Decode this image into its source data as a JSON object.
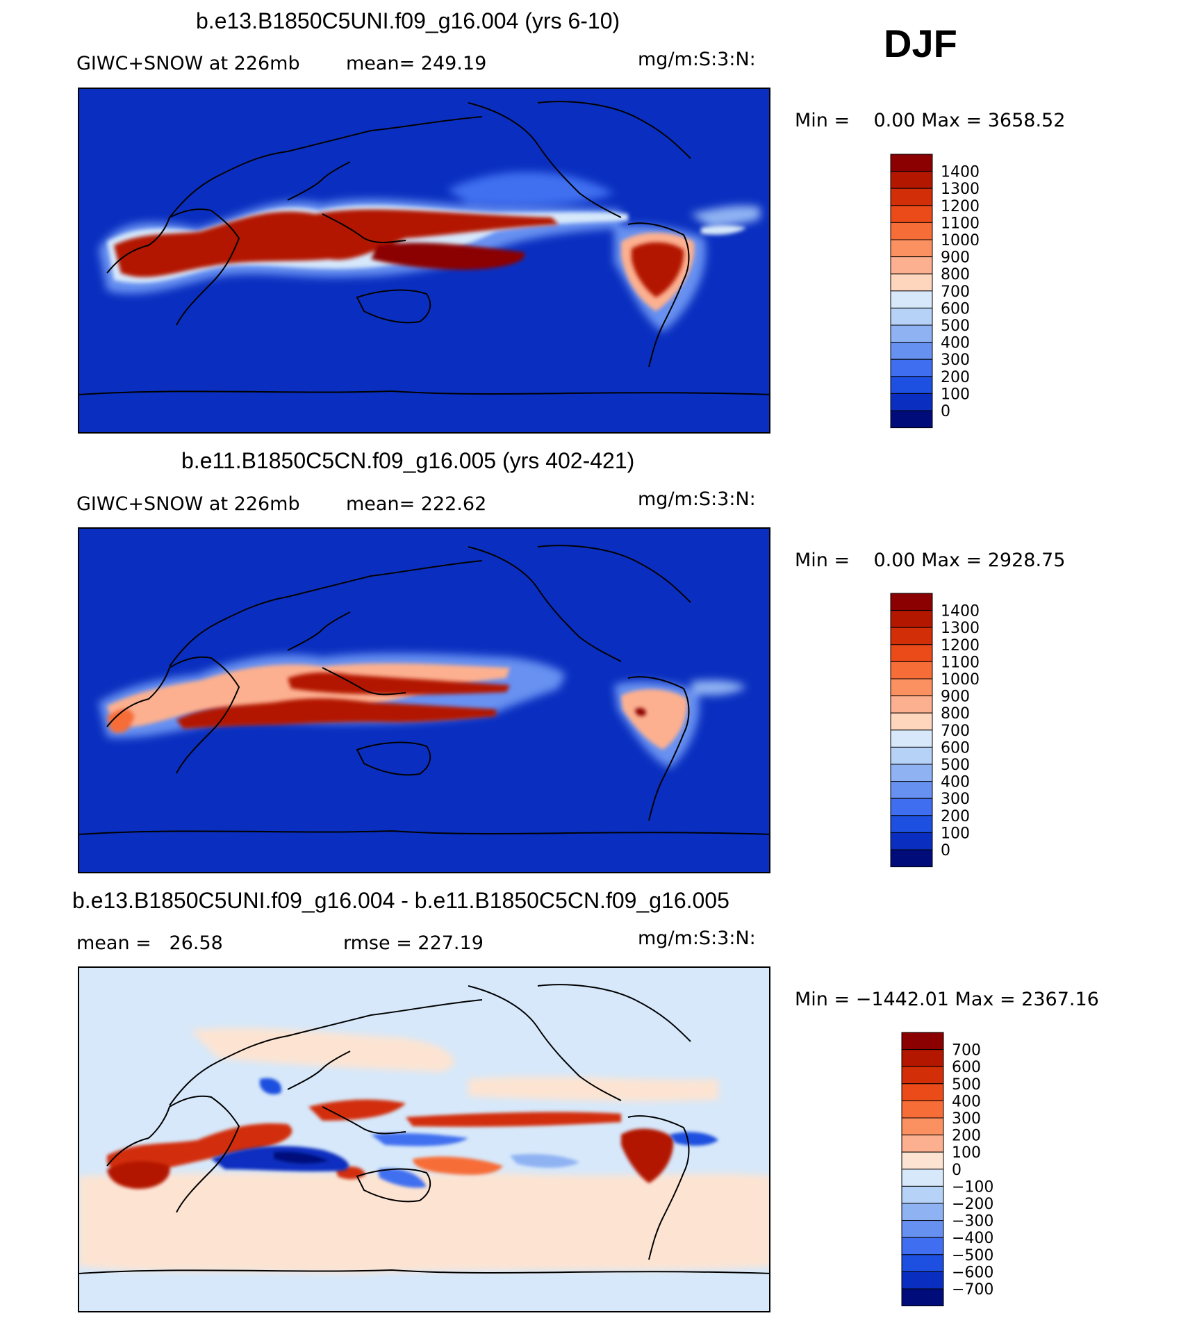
{
  "season": "DJF",
  "panels": [
    {
      "title": "b.e13.B1850C5UNI.f09_g16.004 (yrs 6-10)",
      "left_label": "GIWC+SNOW at 226mb",
      "stat_label": "mean= 249.19",
      "units": "mg/m:S:3:N:",
      "minmax": "Min =    0.00 Max = 3658.52",
      "background": "#0a2fc0"
    },
    {
      "title": "b.e11.B1850C5CN.f09_g16.005 (yrs 402-421)",
      "left_label": "GIWC+SNOW at 226mb",
      "stat_label": "mean= 222.62",
      "units": "mg/m:S:3:N:",
      "minmax": "Min =    0.00 Max = 2928.75",
      "background": "#0a2fc0"
    },
    {
      "title": "b.e13.B1850C5UNI.f09_g16.004 - b.e11.B1850C5CN.f09_g16.005",
      "left_label": "mean =   26.58",
      "stat_label": "rmse = 227.19",
      "units": "mg/m:S:3:N:",
      "minmax": "Min = −1442.01 Max = 2367.16",
      "background": "#d6e8fa"
    }
  ],
  "colorbars": {
    "absolute": {
      "labels": [
        "1400",
        "1300",
        "1200",
        "1100",
        "1000",
        "900",
        "800",
        "700",
        "600",
        "500",
        "400",
        "300",
        "200",
        "100",
        "0"
      ],
      "colors": [
        "#8b0000",
        "#b31700",
        "#d22e07",
        "#ea4b18",
        "#f76d38",
        "#fb9061",
        "#fcb08f",
        "#fdd6bd",
        "#d6e8fa",
        "#b6d2f6",
        "#8fb2f3",
        "#6791f1",
        "#3f6ff0",
        "#1d4fe0",
        "#0a2fc0",
        "#000c7a"
      ]
    },
    "difference": {
      "labels": [
        "700",
        "600",
        "500",
        "400",
        "300",
        "200",
        "100",
        "0",
        "−100",
        "−200",
        "−300",
        "−400",
        "−500",
        "−600",
        "−700"
      ],
      "colors": [
        "#8b0000",
        "#b31700",
        "#d22e07",
        "#ea4b18",
        "#f76d38",
        "#fb9061",
        "#fcb08f",
        "#fde4d2",
        "#d6e8fa",
        "#b6d2f6",
        "#8fb2f3",
        "#6791f1",
        "#3f6ff0",
        "#1d4fe0",
        "#0a2fc0",
        "#000c7a"
      ]
    }
  }
}
